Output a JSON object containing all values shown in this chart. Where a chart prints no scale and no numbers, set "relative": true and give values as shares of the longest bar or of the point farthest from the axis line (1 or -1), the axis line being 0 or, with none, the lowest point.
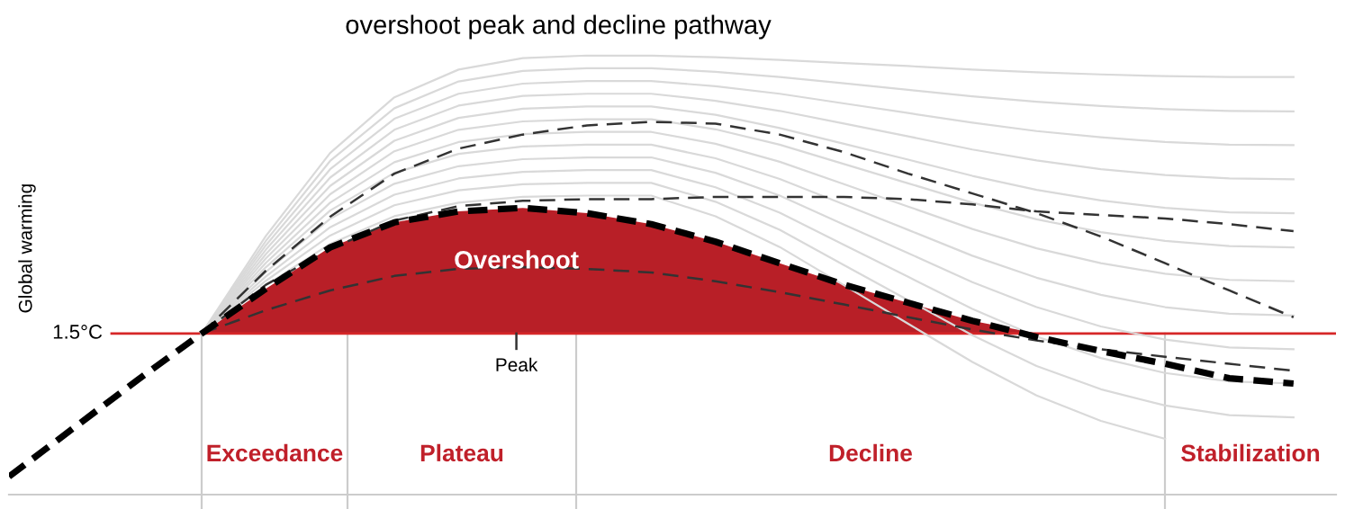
{
  "chart_data": {
    "type": "line",
    "title": "overshoot peak and decline pathway",
    "ylabel": "Global warming",
    "relative": true,
    "legend": false,
    "grid": false,
    "categories": [
      null,
      null,
      null,
      null,
      null,
      null,
      null,
      null,
      null,
      null,
      null,
      null,
      null,
      null,
      null,
      null,
      null,
      null,
      null,
      null,
      null
    ],
    "series": [
      {
        "type": "area",
        "name": "Overshoot",
        "color": "#b81f27",
        "values": [
          null,
          null,
          null,
          0.367,
          0.469,
          0.563,
          0.62,
          0.645,
          0.653,
          0.641,
          0.616,
          0.576,
          0.527,
          0.478,
          0.437,
          0.396,
          0.367,
          null,
          null,
          null,
          null
        ]
      },
      {
        "color": "#d9d9d9",
        "line_style": "solid",
        "values": [
          null,
          null,
          null,
          0.367,
          0.589,
          0.778,
          0.905,
          0.968,
          0.994,
          1.0,
          1.0,
          0.996,
          0.99,
          0.983,
          0.976,
          0.968,
          0.962,
          0.957,
          0.953,
          0.951,
          0.951
        ]
      },
      {
        "color": "#d9d9d9",
        "line_style": "solid",
        "values": [
          null,
          null,
          null,
          0.367,
          0.578,
          0.76,
          0.88,
          0.941,
          0.965,
          0.971,
          0.971,
          0.963,
          0.951,
          0.937,
          0.922,
          0.907,
          0.895,
          0.885,
          0.878,
          0.874,
          0.873
        ]
      },
      {
        "color": "#d9d9d9",
        "line_style": "solid",
        "values": [
          null,
          null,
          null,
          0.367,
          0.568,
          0.741,
          0.856,
          0.913,
          0.936,
          0.942,
          0.942,
          0.93,
          0.913,
          0.891,
          0.869,
          0.847,
          0.828,
          0.814,
          0.803,
          0.797,
          0.796
        ]
      },
      {
        "color": "#d9d9d9",
        "line_style": "solid",
        "values": [
          null,
          null,
          null,
          0.367,
          0.558,
          0.722,
          0.831,
          0.886,
          0.908,
          0.913,
          0.913,
          0.897,
          0.874,
          0.845,
          0.816,
          0.786,
          0.761,
          0.741,
          0.728,
          0.72,
          0.718
        ]
      },
      {
        "color": "#d9d9d9",
        "line_style": "solid",
        "values": [
          null,
          null,
          null,
          0.367,
          0.548,
          0.703,
          0.806,
          0.858,
          0.879,
          0.884,
          0.884,
          0.865,
          0.835,
          0.799,
          0.763,
          0.726,
          0.694,
          0.67,
          0.653,
          0.643,
          0.641
        ]
      },
      {
        "color": "#d9d9d9",
        "line_style": "solid",
        "values": [
          null,
          null,
          null,
          0.367,
          0.538,
          0.684,
          0.782,
          0.831,
          0.85,
          0.855,
          0.855,
          0.832,
          0.797,
          0.753,
          0.709,
          0.665,
          0.627,
          0.598,
          0.578,
          0.566,
          0.563
        ]
      },
      {
        "color": "#d9d9d9",
        "line_style": "solid",
        "values": [
          null,
          null,
          null,
          0.367,
          0.528,
          0.665,
          0.757,
          0.803,
          0.821,
          0.826,
          0.826,
          0.799,
          0.758,
          0.707,
          0.656,
          0.605,
          0.561,
          0.527,
          0.503,
          0.489,
          0.486
        ]
      },
      {
        "color": "#d9d9d9",
        "line_style": "solid",
        "values": [
          null,
          null,
          null,
          0.367,
          0.518,
          0.647,
          0.733,
          0.776,
          0.793,
          0.797,
          0.797,
          0.766,
          0.719,
          0.661,
          0.603,
          0.544,
          0.494,
          0.455,
          0.427,
          0.412,
          0.408
        ]
      },
      {
        "color": "#d9d9d9",
        "line_style": "solid",
        "values": [
          null,
          null,
          null,
          0.367,
          0.507,
          0.628,
          0.708,
          0.748,
          0.764,
          0.768,
          0.768,
          0.733,
          0.681,
          0.615,
          0.55,
          0.484,
          0.427,
          0.383,
          0.353,
          0.335,
          0.331
        ]
      },
      {
        "color": "#d9d9d9",
        "line_style": "solid",
        "values": [
          null,
          null,
          null,
          0.367,
          0.497,
          0.609,
          0.683,
          0.72,
          0.735,
          0.739,
          0.739,
          0.7,
          0.642,
          0.569,
          0.496,
          0.423,
          0.36,
          0.311,
          0.277,
          0.258,
          0.253
        ]
      },
      {
        "color": "#d9d9d9",
        "line_style": "solid",
        "values": [
          null,
          null,
          null,
          0.367,
          0.487,
          0.59,
          0.659,
          0.693,
          0.707,
          0.71,
          0.71,
          0.667,
          0.603,
          0.523,
          0.443,
          0.363,
          0.293,
          0.24,
          0.203,
          0.181,
          0.176
        ]
      },
      {
        "color": "#d9d9d9",
        "line_style": "solid",
        "values": [
          null,
          null,
          null,
          0.367,
          0.477,
          0.571,
          0.634,
          0.665,
          0.678,
          0.681,
          0.681,
          0.634,
          0.564,
          0.477,
          0.389,
          0.302,
          0.226,
          0.168,
          0.127,
          null,
          null
        ]
      },
      {
        "color": "#333333",
        "line_style": "dashed",
        "values": [
          null,
          null,
          null,
          0.367,
          0.42,
          0.465,
          0.498,
          0.514,
          0.518,
          0.514,
          0.506,
          0.486,
          0.461,
          0.433,
          0.404,
          0.376,
          0.351,
          0.331,
          0.314,
          0.298,
          0.282
        ]
      },
      {
        "color": "#333333",
        "line_style": "dashed",
        "values": [
          null,
          null,
          null,
          0.367,
          0.478,
          0.559,
          0.624,
          0.657,
          0.669,
          0.673,
          0.673,
          0.678,
          0.678,
          0.678,
          0.673,
          0.661,
          0.645,
          0.637,
          0.629,
          0.616,
          0.6
        ]
      },
      {
        "color": "#333333",
        "line_style": "dashed",
        "values": [
          null,
          null,
          null,
          0.367,
          0.51,
          0.633,
          0.731,
          0.788,
          0.82,
          0.841,
          0.849,
          0.845,
          0.82,
          0.78,
          0.731,
          0.686,
          0.641,
          0.588,
          0.527,
          0.465,
          0.404
        ]
      },
      {
        "color": "#000000",
        "line_style": "dashed",
        "values": [
          0.041,
          0.151,
          0.261,
          0.367,
          0.469,
          0.563,
          0.62,
          0.645,
          0.653,
          0.641,
          0.616,
          0.576,
          0.527,
          0.478,
          0.437,
          0.396,
          0.359,
          0.327,
          0.298,
          0.265,
          0.253
        ]
      }
    ],
    "ref_lines": [
      {
        "axis": "y",
        "value": 0.367,
        "label": "1.5°C",
        "color": "#d62728"
      }
    ],
    "annotations": [
      "Peak",
      "Exceedance",
      "Plateau",
      "Decline",
      "Stabilization"
    ]
  }
}
